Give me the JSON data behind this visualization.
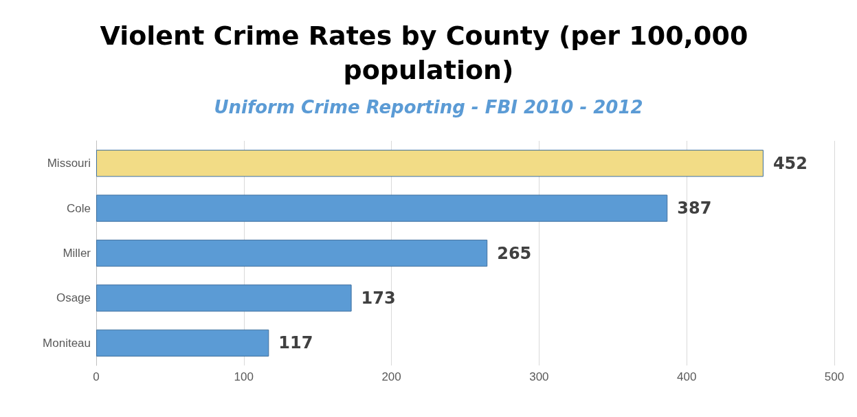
{
  "chart_data": {
    "type": "bar",
    "orientation": "horizontal",
    "title": "Violent Crime Rates by County (per 100,000 population)",
    "subtitle": "Uniform Crime Reporting - FBI 2010 - 2012",
    "categories": [
      "Missouri",
      "Cole",
      "Miller",
      "Osage",
      "Moniteau"
    ],
    "values": [
      452,
      387,
      265,
      173,
      117
    ],
    "colors": [
      "#f2dc86",
      "#5b9bd5",
      "#5b9bd5",
      "#5b9bd5",
      "#5b9bd5"
    ],
    "xlim": [
      0,
      500
    ],
    "xticks": [
      0,
      100,
      200,
      300,
      400,
      500
    ],
    "grid": "x",
    "data_labels": true
  }
}
